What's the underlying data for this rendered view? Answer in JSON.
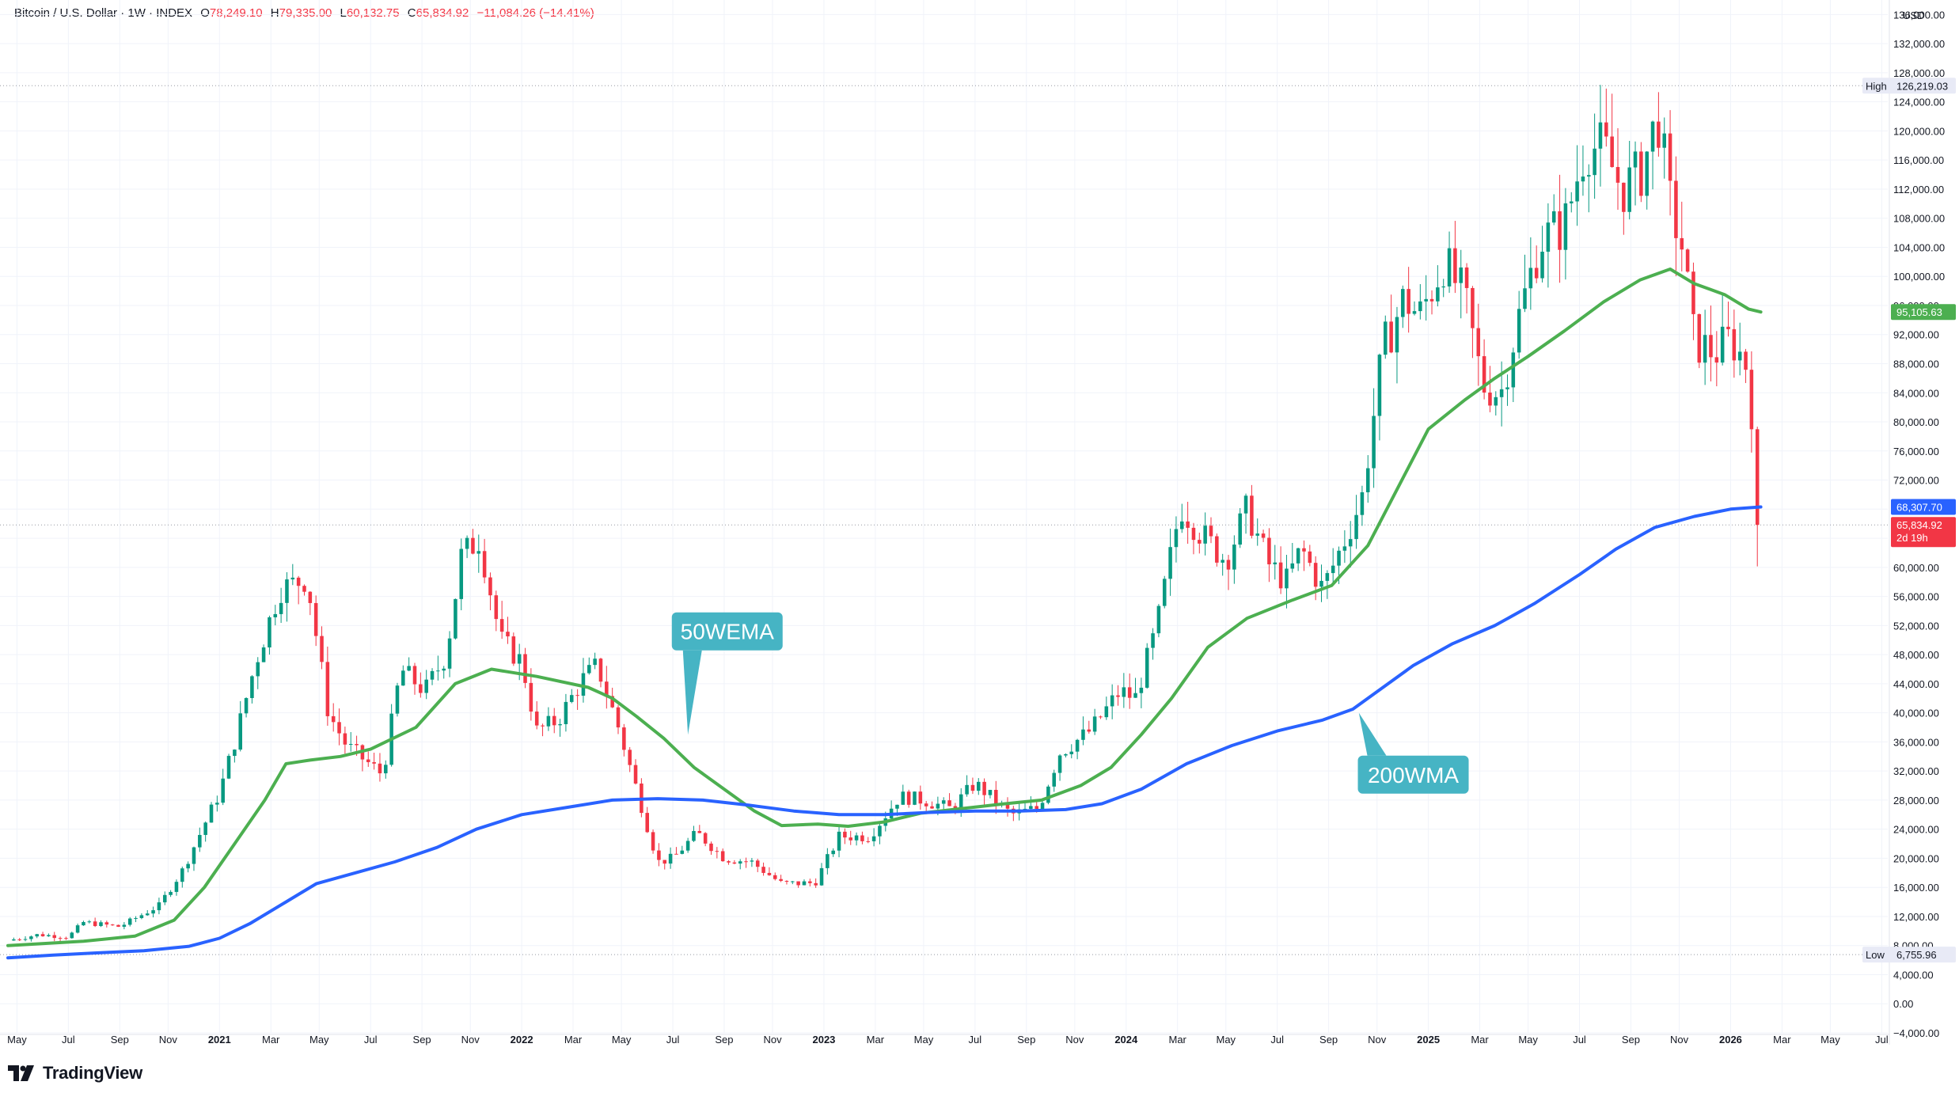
{
  "header": {
    "symbol": "Bitcoin / U.S. Dollar · 1W · INDEX",
    "open_key": "O",
    "open": "78,249.10",
    "high_key": "H",
    "high": "79,335.00",
    "low_key": "L",
    "low": "60,132.75",
    "close_key": "C",
    "close": "65,834.92",
    "change": "−11,084.26 (−14.41%)"
  },
  "brand": {
    "name": "TradingView",
    "icon": "tradingview-logo-icon"
  },
  "colors": {
    "up": "#089981",
    "down": "#f23645",
    "ema50": "#4caf50",
    "wma200": "#2962ff",
    "callout": "#46b4c4",
    "grid": "#f0f3fa"
  },
  "chart_data": {
    "type": "candlestick",
    "title": "Bitcoin / U.S. Dollar · 1W · INDEX",
    "currency": "USD",
    "ylim": [
      -4000,
      138000
    ],
    "grid": true,
    "y_ticks": [
      "136,000.00",
      "132,000.00",
      "128,000.00",
      "124,000.00",
      "120,000.00",
      "116,000.00",
      "112,000.00",
      "108,000.00",
      "104,000.00",
      "100,000.00",
      "96,000.00",
      "92,000.00",
      "88,000.00",
      "84,000.00",
      "80,000.00",
      "76,000.00",
      "72,000.00",
      "68,000.00",
      "64,000.00",
      "60,000.00",
      "56,000.00",
      "52,000.00",
      "48,000.00",
      "44,000.00",
      "40,000.00",
      "36,000.00",
      "32,000.00",
      "28,000.00",
      "24,000.00",
      "20,000.00",
      "16,000.00",
      "12,000.00",
      "8,000.00",
      "4,000.00",
      "0.00",
      "−4,000.00"
    ],
    "x_ticks": [
      {
        "label": "May",
        "t": 2020.33,
        "bold": false
      },
      {
        "label": "Jul",
        "t": 2020.5,
        "bold": false
      },
      {
        "label": "Sep",
        "t": 2020.67,
        "bold": false
      },
      {
        "label": "Nov",
        "t": 2020.83,
        "bold": false
      },
      {
        "label": "2021",
        "t": 2021.0,
        "bold": true
      },
      {
        "label": "Mar",
        "t": 2021.17,
        "bold": false
      },
      {
        "label": "May",
        "t": 2021.33,
        "bold": false
      },
      {
        "label": "Jul",
        "t": 2021.5,
        "bold": false
      },
      {
        "label": "Sep",
        "t": 2021.67,
        "bold": false
      },
      {
        "label": "Nov",
        "t": 2021.83,
        "bold": false
      },
      {
        "label": "2022",
        "t": 2022.0,
        "bold": true
      },
      {
        "label": "Mar",
        "t": 2022.17,
        "bold": false
      },
      {
        "label": "May",
        "t": 2022.33,
        "bold": false
      },
      {
        "label": "Jul",
        "t": 2022.5,
        "bold": false
      },
      {
        "label": "Sep",
        "t": 2022.67,
        "bold": false
      },
      {
        "label": "Nov",
        "t": 2022.83,
        "bold": false
      },
      {
        "label": "2023",
        "t": 2023.0,
        "bold": true
      },
      {
        "label": "Mar",
        "t": 2023.17,
        "bold": false
      },
      {
        "label": "May",
        "t": 2023.33,
        "bold": false
      },
      {
        "label": "Jul",
        "t": 2023.5,
        "bold": false
      },
      {
        "label": "Sep",
        "t": 2023.67,
        "bold": false
      },
      {
        "label": "Nov",
        "t": 2023.83,
        "bold": false
      },
      {
        "label": "2024",
        "t": 2024.0,
        "bold": true
      },
      {
        "label": "Mar",
        "t": 2024.17,
        "bold": false
      },
      {
        "label": "May",
        "t": 2024.33,
        "bold": false
      },
      {
        "label": "Jul",
        "t": 2024.5,
        "bold": false
      },
      {
        "label": "Sep",
        "t": 2024.67,
        "bold": false
      },
      {
        "label": "Nov",
        "t": 2024.83,
        "bold": false
      },
      {
        "label": "2025",
        "t": 2025.0,
        "bold": true
      },
      {
        "label": "Mar",
        "t": 2025.17,
        "bold": false
      },
      {
        "label": "May",
        "t": 2025.33,
        "bold": false
      },
      {
        "label": "Jul",
        "t": 2025.5,
        "bold": false
      },
      {
        "label": "Sep",
        "t": 2025.67,
        "bold": false
      },
      {
        "label": "Nov",
        "t": 2025.83,
        "bold": false
      },
      {
        "label": "2026",
        "t": 2026.0,
        "bold": true
      },
      {
        "label": "Mar",
        "t": 2026.17,
        "bold": false
      },
      {
        "label": "May",
        "t": 2026.33,
        "bold": false
      },
      {
        "label": "Jul",
        "t": 2026.5,
        "bold": false
      }
    ],
    "x_range": [
      2020.3,
      2026.52
    ],
    "price_anchors": [
      [
        2020.3,
        8700
      ],
      [
        2020.4,
        9500
      ],
      [
        2020.5,
        9200
      ],
      [
        2020.55,
        11200
      ],
      [
        2020.67,
        10600
      ],
      [
        2020.8,
        13500
      ],
      [
        2020.88,
        18500
      ],
      [
        2021.0,
        29000
      ],
      [
        2021.05,
        36000
      ],
      [
        2021.12,
        47000
      ],
      [
        2021.2,
        57000
      ],
      [
        2021.29,
        58500
      ],
      [
        2021.36,
        40000
      ],
      [
        2021.42,
        35500
      ],
      [
        2021.54,
        31500
      ],
      [
        2021.6,
        46000
      ],
      [
        2021.68,
        43000
      ],
      [
        2021.75,
        48000
      ],
      [
        2021.8,
        61500
      ],
      [
        2021.86,
        64000
      ],
      [
        2021.93,
        50000
      ],
      [
        2022.0,
        47000
      ],
      [
        2022.05,
        37500
      ],
      [
        2022.12,
        39000
      ],
      [
        2022.2,
        44500
      ],
      [
        2022.25,
        46500
      ],
      [
        2022.32,
        38000
      ],
      [
        2022.38,
        29500
      ],
      [
        2022.45,
        19500
      ],
      [
        2022.5,
        20000
      ],
      [
        2022.58,
        23500
      ],
      [
        2022.67,
        20000
      ],
      [
        2022.76,
        19500
      ],
      [
        2022.86,
        16500
      ],
      [
        2022.97,
        16600
      ],
      [
        2023.05,
        23000
      ],
      [
        2023.15,
        23000
      ],
      [
        2023.25,
        28500
      ],
      [
        2023.33,
        28000
      ],
      [
        2023.42,
        26800
      ],
      [
        2023.5,
        30300
      ],
      [
        2023.62,
        26000
      ],
      [
        2023.71,
        26900
      ],
      [
        2023.78,
        34500
      ],
      [
        2023.88,
        37500
      ],
      [
        2023.98,
        43000
      ],
      [
        2024.03,
        42000
      ],
      [
        2024.1,
        51500
      ],
      [
        2024.18,
        68500
      ],
      [
        2024.26,
        64000
      ],
      [
        2024.33,
        61000
      ],
      [
        2024.4,
        68000
      ],
      [
        2024.47,
        60500
      ],
      [
        2024.53,
        58000
      ],
      [
        2024.58,
        62500
      ],
      [
        2024.65,
        57000
      ],
      [
        2024.72,
        63500
      ],
      [
        2024.78,
        69500
      ],
      [
        2024.85,
        90000
      ],
      [
        2024.92,
        97000
      ],
      [
        2024.97,
        94500
      ],
      [
        2025.05,
        102000
      ],
      [
        2025.12,
        97000
      ],
      [
        2025.18,
        85000
      ],
      [
        2025.24,
        84000
      ],
      [
        2025.3,
        94500
      ],
      [
        2025.37,
        105000
      ],
      [
        2025.45,
        107000
      ],
      [
        2025.52,
        118000
      ],
      [
        2025.58,
        117500
      ],
      [
        2025.64,
        112000
      ],
      [
        2025.7,
        114000
      ],
      [
        2025.76,
        122000
      ],
      [
        2025.8,
        110000
      ],
      [
        2025.84,
        104000
      ],
      [
        2025.88,
        91000
      ],
      [
        2025.95,
        89500
      ],
      [
        2026.0,
        91500
      ],
      [
        2026.05,
        88000
      ],
      [
        2026.08,
        78300
      ],
      [
        2026.1,
        65835
      ]
    ],
    "series": [
      {
        "name": "50WEMA",
        "color": "#4caf50",
        "points": [
          [
            2020.3,
            8000
          ],
          [
            2020.55,
            8600
          ],
          [
            2020.72,
            9300
          ],
          [
            2020.85,
            11500
          ],
          [
            2020.95,
            16000
          ],
          [
            2021.05,
            22000
          ],
          [
            2021.15,
            28000
          ],
          [
            2021.22,
            33000
          ],
          [
            2021.3,
            33500
          ],
          [
            2021.4,
            34000
          ],
          [
            2021.5,
            35000
          ],
          [
            2021.65,
            38000
          ],
          [
            2021.78,
            44000
          ],
          [
            2021.9,
            46000
          ],
          [
            2022.05,
            45000
          ],
          [
            2022.22,
            43500
          ],
          [
            2022.3,
            42000
          ],
          [
            2022.38,
            39500
          ],
          [
            2022.47,
            36500
          ],
          [
            2022.57,
            32500
          ],
          [
            2022.67,
            29500
          ],
          [
            2022.77,
            26500
          ],
          [
            2022.86,
            24500
          ],
          [
            2022.98,
            24700
          ],
          [
            2023.08,
            24400
          ],
          [
            2023.2,
            25000
          ],
          [
            2023.32,
            26200
          ],
          [
            2023.45,
            26800
          ],
          [
            2023.6,
            27500
          ],
          [
            2023.72,
            28000
          ],
          [
            2023.85,
            30000
          ],
          [
            2023.95,
            32500
          ],
          [
            2024.05,
            37000
          ],
          [
            2024.15,
            42000
          ],
          [
            2024.27,
            49000
          ],
          [
            2024.4,
            53000
          ],
          [
            2024.55,
            55500
          ],
          [
            2024.68,
            57500
          ],
          [
            2024.8,
            63000
          ],
          [
            2024.9,
            71000
          ],
          [
            2025.0,
            79000
          ],
          [
            2025.12,
            83000
          ],
          [
            2025.22,
            86000
          ],
          [
            2025.33,
            89000
          ],
          [
            2025.45,
            92500
          ],
          [
            2025.58,
            96500
          ],
          [
            2025.7,
            99500
          ],
          [
            2025.8,
            101000
          ],
          [
            2025.88,
            99000
          ],
          [
            2025.98,
            97500
          ],
          [
            2026.06,
            95500
          ],
          [
            2026.1,
            95105.63
          ]
        ]
      },
      {
        "name": "200WMA",
        "color": "#2962ff",
        "points": [
          [
            2020.3,
            6300
          ],
          [
            2020.45,
            6700
          ],
          [
            2020.6,
            7000
          ],
          [
            2020.75,
            7300
          ],
          [
            2020.9,
            7900
          ],
          [
            2021.0,
            9000
          ],
          [
            2021.1,
            11000
          ],
          [
            2021.22,
            14000
          ],
          [
            2021.32,
            16500
          ],
          [
            2021.45,
            18000
          ],
          [
            2021.58,
            19500
          ],
          [
            2021.72,
            21500
          ],
          [
            2021.85,
            24000
          ],
          [
            2022.0,
            26000
          ],
          [
            2022.15,
            27000
          ],
          [
            2022.3,
            28000
          ],
          [
            2022.45,
            28200
          ],
          [
            2022.6,
            28000
          ],
          [
            2022.75,
            27300
          ],
          [
            2022.9,
            26500
          ],
          [
            2023.05,
            26000
          ],
          [
            2023.2,
            26000
          ],
          [
            2023.35,
            26300
          ],
          [
            2023.5,
            26500
          ],
          [
            2023.65,
            26500
          ],
          [
            2023.8,
            26700
          ],
          [
            2023.92,
            27500
          ],
          [
            2024.05,
            29500
          ],
          [
            2024.2,
            33000
          ],
          [
            2024.35,
            35500
          ],
          [
            2024.5,
            37500
          ],
          [
            2024.65,
            39000
          ],
          [
            2024.75,
            40500
          ],
          [
            2024.85,
            43500
          ],
          [
            2024.95,
            46500
          ],
          [
            2025.08,
            49500
          ],
          [
            2025.22,
            52000
          ],
          [
            2025.35,
            55000
          ],
          [
            2025.5,
            59000
          ],
          [
            2025.62,
            62500
          ],
          [
            2025.75,
            65500
          ],
          [
            2025.88,
            67000
          ],
          [
            2026.0,
            68000
          ],
          [
            2026.1,
            68307.7
          ]
        ]
      }
    ],
    "price_lines": [
      {
        "name": "High",
        "value": "126,219.03",
        "y": 126219.03
      },
      {
        "name": "Low",
        "value": "6,755.96",
        "y": 6755.96
      },
      {
        "name": "Last",
        "value": "65,834.92",
        "y": 65834.92,
        "countdown": "2d 19h"
      }
    ],
    "axis_labels": {
      "ema50": "95,105.63",
      "wma200": "68,307.70",
      "currency": "USD"
    },
    "annotations": [
      {
        "text": "50WEMA",
        "target": [
          2022.55,
          37000
        ],
        "box_center": [
          2022.68,
          51200
        ]
      },
      {
        "text": "200WMA",
        "target": [
          2024.77,
          40000
        ],
        "box_center": [
          2024.95,
          31500
        ]
      }
    ]
  }
}
